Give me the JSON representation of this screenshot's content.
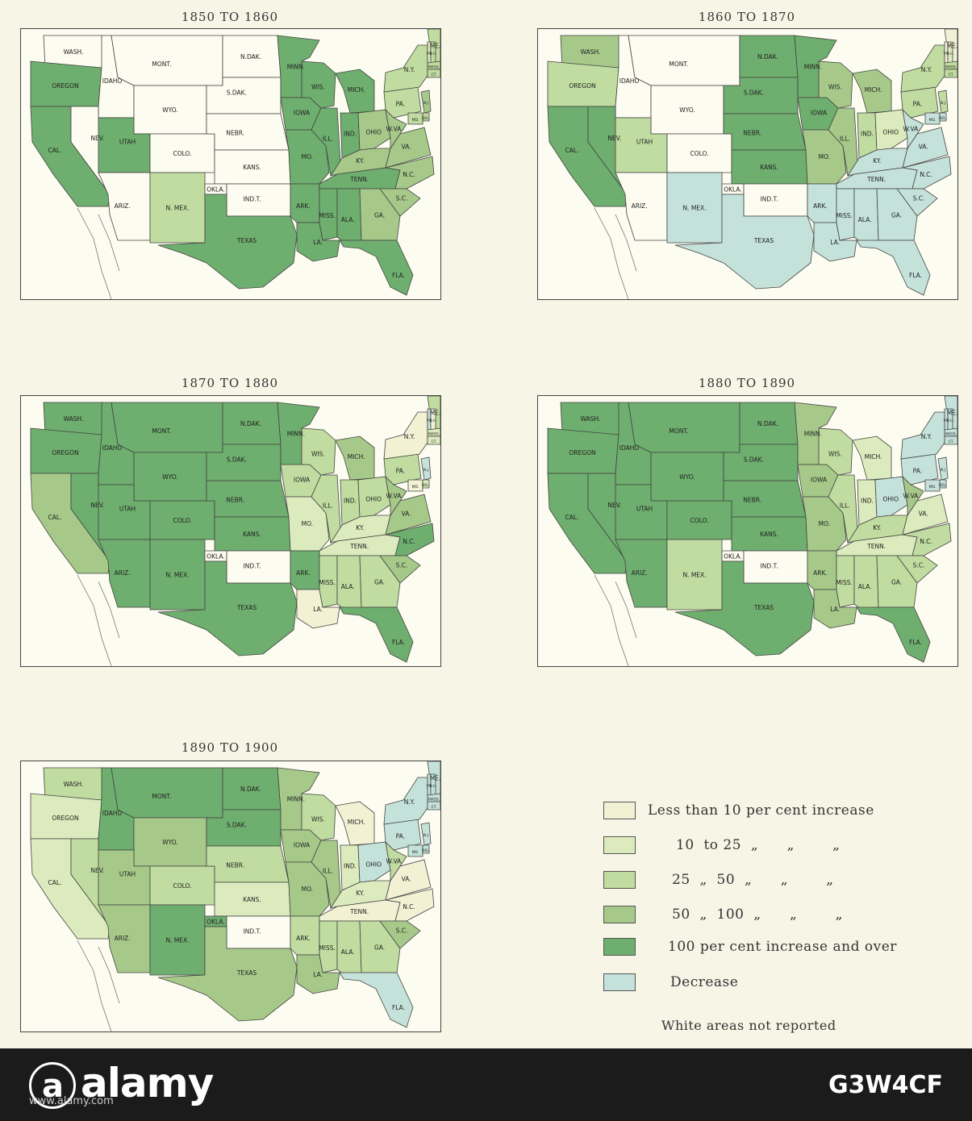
{
  "colors": {
    "lt10": "#f2f1d4",
    "r10_25": "#dcebbd",
    "r25_50": "#c0dca0",
    "r50_100": "#a6c98a",
    "gt100": "#6eae6e",
    "decrease": "#c5e2da",
    "none": "#fdfcf0"
  },
  "maps": [
    {
      "title": "1850 TO 1860"
    },
    {
      "title": "1860 TO 1870"
    },
    {
      "title": "1870 TO 1880"
    },
    {
      "title": "1880 TO 1890"
    },
    {
      "title": "1890 TO 1900"
    }
  ],
  "state_names": [
    "WASH.",
    "OREGON",
    "CAL.",
    "IDAHO",
    "NEV.",
    "MONT.",
    "WYO.",
    "UTAH",
    "ARIZ.",
    "COLO.",
    "N. MEX.",
    "N.DAK.",
    "S.DAK.",
    "NEBR.",
    "KANS.",
    "OKLA.",
    "IND.T.",
    "TEXAS",
    "MINN.",
    "IOWA",
    "MO.",
    "ARK.",
    "LA.",
    "WIS.",
    "ILL.",
    "MICH.",
    "IND.",
    "OHIO",
    "KY.",
    "TENN.",
    "MISS.",
    "ALA.",
    "GA.",
    "FLA.",
    "N.C.",
    "S.C.",
    "VA.",
    "W.VA.",
    "PA.",
    "N.Y.",
    "ME.",
    "VT.",
    "N.H.",
    "MASS.",
    "CT.",
    "N.J.",
    "DEL.",
    "MD."
  ],
  "state_classes": [
    [
      "none",
      "gt100",
      "gt100",
      "none",
      "none",
      "none",
      "none",
      "gt100",
      "none",
      "none",
      "r25_50",
      "none",
      "none",
      "none",
      "none",
      "none",
      "none",
      "gt100",
      "gt100",
      "gt100",
      "gt100",
      "gt100",
      "gt100",
      "gt100",
      "gt100",
      "gt100",
      "gt100",
      "r50_100",
      "r50_100",
      "gt100",
      "gt100",
      "gt100",
      "r50_100",
      "gt100",
      "r50_100",
      "r50_100",
      "r50_100",
      "r50_100",
      "r25_50",
      "r25_50",
      "r25_50",
      "r10_25",
      "r25_50",
      "r25_50",
      "r25_50",
      "r50_100",
      "r25_50",
      "r25_50"
    ],
    [
      "r50_100",
      "r25_50",
      "gt100",
      "none",
      "gt100",
      "none",
      "none",
      "r25_50",
      "none",
      "none",
      "decrease",
      "gt100",
      "gt100",
      "gt100",
      "gt100",
      "none",
      "none",
      "decrease",
      "gt100",
      "gt100",
      "r50_100",
      "decrease",
      "decrease",
      "r50_100",
      "r50_100",
      "r50_100",
      "r25_50",
      "r10_25",
      "decrease",
      "decrease",
      "decrease",
      "decrease",
      "decrease",
      "decrease",
      "decrease",
      "decrease",
      "decrease",
      "decrease",
      "r25_50",
      "r25_50",
      "lt10",
      "lt10",
      "r10_25",
      "r25_50",
      "r25_50",
      "r25_50",
      "decrease",
      "decrease"
    ],
    [
      "gt100",
      "gt100",
      "r50_100",
      "gt100",
      "gt100",
      "gt100",
      "gt100",
      "gt100",
      "gt100",
      "gt100",
      "gt100",
      "gt100",
      "gt100",
      "gt100",
      "gt100",
      "none",
      "none",
      "gt100",
      "gt100",
      "r25_50",
      "r10_25",
      "gt100",
      "lt10",
      "r25_50",
      "r25_50",
      "r50_100",
      "r25_50",
      "r25_50",
      "r10_25",
      "r10_25",
      "r25_50",
      "r25_50",
      "r25_50",
      "gt100",
      "gt100",
      "r50_100",
      "r50_100",
      "r50_100",
      "r25_50",
      "lt10",
      "r25_50",
      "decrease",
      "lt10",
      "r10_25",
      "r10_25",
      "decrease",
      "r10_25",
      "lt10"
    ],
    [
      "gt100",
      "gt100",
      "gt100",
      "gt100",
      "gt100",
      "gt100",
      "gt100",
      "gt100",
      "gt100",
      "gt100",
      "r25_50",
      "gt100",
      "gt100",
      "gt100",
      "gt100",
      "none",
      "none",
      "gt100",
      "r50_100",
      "r50_100",
      "r50_100",
      "r50_100",
      "r50_100",
      "r25_50",
      "r25_50",
      "r10_25",
      "r10_25",
      "decrease",
      "r25_50",
      "r10_25",
      "r25_50",
      "r25_50",
      "r25_50",
      "gt100",
      "r25_50",
      "r25_50",
      "r10_25",
      "r50_100",
      "decrease",
      "decrease",
      "decrease",
      "decrease",
      "decrease",
      "decrease",
      "decrease",
      "decrease",
      "decrease",
      "decrease"
    ],
    [
      "r25_50",
      "r10_25",
      "r10_25",
      "gt100",
      "r25_50",
      "gt100",
      "r50_100",
      "r50_100",
      "r50_100",
      "r25_50",
      "gt100",
      "gt100",
      "gt100",
      "r25_50",
      "r10_25",
      "gt100",
      "none",
      "r50_100",
      "r50_100",
      "r50_100",
      "r50_100",
      "r25_50",
      "r50_100",
      "r25_50",
      "r50_100",
      "lt10",
      "r10_25",
      "decrease",
      "r10_25",
      "lt10",
      "r25_50",
      "r25_50",
      "r25_50",
      "decrease",
      "lt10",
      "r50_100",
      "lt10",
      "r25_50",
      "decrease",
      "decrease",
      "decrease",
      "decrease",
      "decrease",
      "decrease",
      "decrease",
      "decrease",
      "decrease",
      "decrease"
    ]
  ],
  "legend": [
    {
      "key": "lt10",
      "label": "Less than 10 per cent increase"
    },
    {
      "key": "r10_25",
      "label": "10  to 25  „      „        „"
    },
    {
      "key": "r25_50",
      "label": "25  „  50  „      „        „"
    },
    {
      "key": "r50_100",
      "label": "50  „  100  „      „        „"
    },
    {
      "key": "gt100",
      "label": "100 per cent increase and over"
    },
    {
      "key": "decrease",
      "label": "Decrease"
    }
  ],
  "legend_note": "White areas not reported",
  "footer": {
    "brand": "alamy",
    "site": "www.alamy.com",
    "stock_id": "G3W4CF"
  }
}
